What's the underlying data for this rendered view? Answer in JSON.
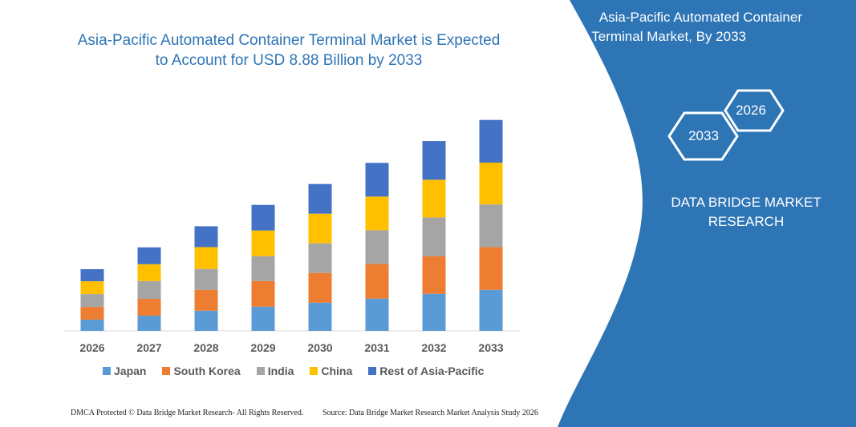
{
  "title": "Asia-Pacific Automated Container Terminal Market is Expected to Account for USD 8.88 Billion by 2033",
  "title_lines": [
    "Asia-Pacific Automated Container Terminal Market is Expected",
    "to Account for USD 8.88 Billion by 2033"
  ],
  "right_panel": {
    "title_lines": [
      "Asia-Pacific Automated Container",
      "Terminal Market, By 2033"
    ],
    "hex_start": "2026",
    "hex_end": "2033",
    "brand_lines": [
      "DATA BRIDGE MARKET",
      "RESEARCH"
    ],
    "color": "#2e75b6"
  },
  "footer": {
    "left": "DMCA Protected © Data Bridge Market Research-  All Rights Reserved.",
    "right": "Source: Data Bridge Market Research  Market Analysis Study 2026"
  },
  "chart_data": {
    "type": "bar",
    "stacked": true,
    "categories": [
      "2026",
      "2027",
      "2028",
      "2029",
      "2030",
      "2031",
      "2032",
      "2033"
    ],
    "series": [
      {
        "name": "Japan",
        "color": "#5b9bd5",
        "values": [
          0.47,
          0.64,
          0.85,
          1.02,
          1.19,
          1.36,
          1.56,
          1.73
        ]
      },
      {
        "name": "South Korea",
        "color": "#ed7d31",
        "values": [
          0.54,
          0.71,
          0.88,
          1.08,
          1.25,
          1.46,
          1.59,
          1.8
        ]
      },
      {
        "name": "India",
        "color": "#a5a5a5",
        "values": [
          0.54,
          0.75,
          0.88,
          1.05,
          1.25,
          1.42,
          1.63,
          1.8
        ]
      },
      {
        "name": "China",
        "color": "#ffc000",
        "values": [
          0.54,
          0.71,
          0.92,
          1.08,
          1.25,
          1.42,
          1.59,
          1.76
        ]
      },
      {
        "name": "Rest of Asia-Pacific",
        "color": "#4472c4",
        "values": [
          0.51,
          0.71,
          0.88,
          1.08,
          1.25,
          1.42,
          1.63,
          1.8
        ]
      }
    ],
    "ylim": [
      0,
      8.88
    ],
    "y_axis_shown": false,
    "grid": false,
    "legend": "bottom"
  }
}
